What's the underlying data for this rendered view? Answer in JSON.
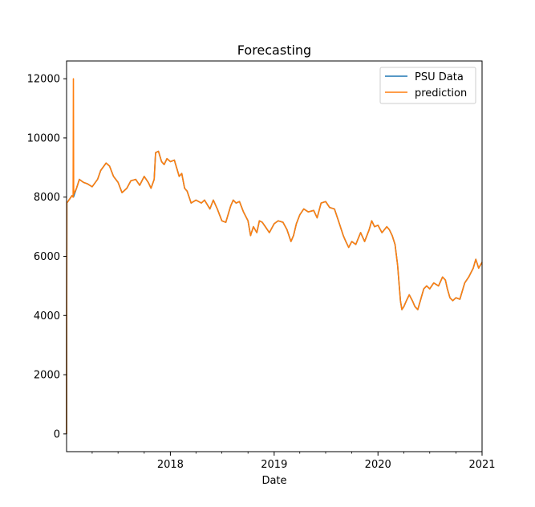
{
  "chart_data": {
    "type": "line",
    "title": "Forecasting",
    "xlabel": "Date",
    "ylabel": "",
    "xlim": [
      "2017-01-01",
      "2021-01-01"
    ],
    "ylim": [
      -600,
      12600
    ],
    "grid": false,
    "legend": "top-right",
    "x_ticks": [
      "2018",
      "2019",
      "2020",
      "2021"
    ],
    "y_ticks": [
      0,
      2000,
      4000,
      6000,
      8000,
      10000,
      12000
    ],
    "series": [
      {
        "name": "PSU Data",
        "color": "#1f77b4",
        "points": [
          [
            "2017-01-01",
            0
          ],
          [
            "2017-01-02",
            7800
          ],
          [
            "2017-01-20",
            8050
          ],
          [
            "2017-01-25",
            8000
          ],
          [
            "2017-02-05",
            8300
          ],
          [
            "2017-02-15",
            8600
          ],
          [
            "2017-03-01",
            8500
          ],
          [
            "2017-03-15",
            8450
          ],
          [
            "2017-04-01",
            8350
          ],
          [
            "2017-04-20",
            8600
          ],
          [
            "2017-05-01",
            8900
          ],
          [
            "2017-05-20",
            9150
          ],
          [
            "2017-06-01",
            9050
          ],
          [
            "2017-06-15",
            8700
          ],
          [
            "2017-07-01",
            8500
          ],
          [
            "2017-07-15",
            8150
          ],
          [
            "2017-08-01",
            8300
          ],
          [
            "2017-08-15",
            8550
          ],
          [
            "2017-09-01",
            8600
          ],
          [
            "2017-09-15",
            8400
          ],
          [
            "2017-10-01",
            8700
          ],
          [
            "2017-10-15",
            8500
          ],
          [
            "2017-10-25",
            8300
          ],
          [
            "2017-11-05",
            8600
          ],
          [
            "2017-11-10",
            9500
          ],
          [
            "2017-11-20",
            9550
          ],
          [
            "2017-12-01",
            9200
          ],
          [
            "2017-12-10",
            9100
          ],
          [
            "2017-12-20",
            9300
          ],
          [
            "2018-01-01",
            9200
          ],
          [
            "2018-01-15",
            9250
          ],
          [
            "2018-02-01",
            8700
          ],
          [
            "2018-02-10",
            8800
          ],
          [
            "2018-02-20",
            8300
          ],
          [
            "2018-03-01",
            8200
          ],
          [
            "2018-03-15",
            7800
          ],
          [
            "2018-04-01",
            7900
          ],
          [
            "2018-04-20",
            7800
          ],
          [
            "2018-05-01",
            7900
          ],
          [
            "2018-05-20",
            7600
          ],
          [
            "2018-06-01",
            7900
          ],
          [
            "2018-06-15",
            7600
          ],
          [
            "2018-07-01",
            7200
          ],
          [
            "2018-07-15",
            7150
          ],
          [
            "2018-08-01",
            7700
          ],
          [
            "2018-08-10",
            7900
          ],
          [
            "2018-08-20",
            7800
          ],
          [
            "2018-09-01",
            7850
          ],
          [
            "2018-09-15",
            7500
          ],
          [
            "2018-10-01",
            7200
          ],
          [
            "2018-10-10",
            6700
          ],
          [
            "2018-10-20",
            7000
          ],
          [
            "2018-11-01",
            6800
          ],
          [
            "2018-11-10",
            7200
          ],
          [
            "2018-11-20",
            7150
          ],
          [
            "2018-12-01",
            7000
          ],
          [
            "2018-12-15",
            6800
          ],
          [
            "2019-01-01",
            7100
          ],
          [
            "2019-01-15",
            7200
          ],
          [
            "2019-02-01",
            7150
          ],
          [
            "2019-02-15",
            6900
          ],
          [
            "2019-03-01",
            6500
          ],
          [
            "2019-03-10",
            6700
          ],
          [
            "2019-03-20",
            7100
          ],
          [
            "2019-04-01",
            7400
          ],
          [
            "2019-04-15",
            7600
          ],
          [
            "2019-05-01",
            7500
          ],
          [
            "2019-05-20",
            7550
          ],
          [
            "2019-06-01",
            7300
          ],
          [
            "2019-06-15",
            7800
          ],
          [
            "2019-07-01",
            7850
          ],
          [
            "2019-07-15",
            7650
          ],
          [
            "2019-08-01",
            7600
          ],
          [
            "2019-08-15",
            7200
          ],
          [
            "2019-09-01",
            6700
          ],
          [
            "2019-09-10",
            6500
          ],
          [
            "2019-09-20",
            6300
          ],
          [
            "2019-10-01",
            6500
          ],
          [
            "2019-10-15",
            6400
          ],
          [
            "2019-11-01",
            6800
          ],
          [
            "2019-11-15",
            6500
          ],
          [
            "2019-12-01",
            6900
          ],
          [
            "2019-12-10",
            7200
          ],
          [
            "2019-12-20",
            7000
          ],
          [
            "2020-01-01",
            7050
          ],
          [
            "2020-01-15",
            6800
          ],
          [
            "2020-02-01",
            7000
          ],
          [
            "2020-02-10",
            6900
          ],
          [
            "2020-02-20",
            6700
          ],
          [
            "2020-03-01",
            6400
          ],
          [
            "2020-03-10",
            5700
          ],
          [
            "2020-03-20",
            4500
          ],
          [
            "2020-03-25",
            4200
          ],
          [
            "2020-04-01",
            4300
          ],
          [
            "2020-04-10",
            4500
          ],
          [
            "2020-04-20",
            4700
          ],
          [
            "2020-05-01",
            4500
          ],
          [
            "2020-05-10",
            4300
          ],
          [
            "2020-05-20",
            4200
          ],
          [
            "2020-06-01",
            4600
          ],
          [
            "2020-06-10",
            4900
          ],
          [
            "2020-06-20",
            5000
          ],
          [
            "2020-07-01",
            4900
          ],
          [
            "2020-07-15",
            5100
          ],
          [
            "2020-08-01",
            5000
          ],
          [
            "2020-08-15",
            5300
          ],
          [
            "2020-08-25",
            5200
          ],
          [
            "2020-09-01",
            4900
          ],
          [
            "2020-09-10",
            4600
          ],
          [
            "2020-09-20",
            4500
          ],
          [
            "2020-10-01",
            4600
          ],
          [
            "2020-10-15",
            4550
          ],
          [
            "2020-11-01",
            5100
          ],
          [
            "2020-11-15",
            5300
          ],
          [
            "2020-12-01",
            5600
          ],
          [
            "2020-12-10",
            5900
          ],
          [
            "2020-12-20",
            5600
          ],
          [
            "2021-01-01",
            5800
          ]
        ]
      },
      {
        "name": "prediction",
        "color": "#ff7f0e",
        "points": [
          [
            "2017-01-01",
            0
          ],
          [
            "2017-01-02",
            7800
          ],
          [
            "2017-01-20",
            8050
          ],
          [
            "2017-01-24",
            8000
          ],
          [
            "2017-01-25",
            12000
          ],
          [
            "2017-01-26",
            8100
          ],
          [
            "2017-02-05",
            8300
          ],
          [
            "2017-02-15",
            8600
          ],
          [
            "2017-03-01",
            8500
          ],
          [
            "2017-03-15",
            8450
          ],
          [
            "2017-04-01",
            8350
          ],
          [
            "2017-04-20",
            8600
          ],
          [
            "2017-05-01",
            8900
          ],
          [
            "2017-05-20",
            9150
          ],
          [
            "2017-06-01",
            9050
          ],
          [
            "2017-06-15",
            8700
          ],
          [
            "2017-07-01",
            8500
          ],
          [
            "2017-07-15",
            8150
          ],
          [
            "2017-08-01",
            8300
          ],
          [
            "2017-08-15",
            8550
          ],
          [
            "2017-09-01",
            8600
          ],
          [
            "2017-09-15",
            8400
          ],
          [
            "2017-10-01",
            8700
          ],
          [
            "2017-10-15",
            8500
          ],
          [
            "2017-10-25",
            8300
          ],
          [
            "2017-11-05",
            8600
          ],
          [
            "2017-11-10",
            9500
          ],
          [
            "2017-11-20",
            9550
          ],
          [
            "2017-12-01",
            9200
          ],
          [
            "2017-12-10",
            9100
          ],
          [
            "2017-12-20",
            9300
          ],
          [
            "2018-01-01",
            9200
          ],
          [
            "2018-01-15",
            9250
          ],
          [
            "2018-02-01",
            8700
          ],
          [
            "2018-02-10",
            8800
          ],
          [
            "2018-02-20",
            8300
          ],
          [
            "2018-03-01",
            8200
          ],
          [
            "2018-03-15",
            7800
          ],
          [
            "2018-04-01",
            7900
          ],
          [
            "2018-04-20",
            7800
          ],
          [
            "2018-05-01",
            7900
          ],
          [
            "2018-05-20",
            7600
          ],
          [
            "2018-06-01",
            7900
          ],
          [
            "2018-06-15",
            7600
          ],
          [
            "2018-07-01",
            7200
          ],
          [
            "2018-07-15",
            7150
          ],
          [
            "2018-08-01",
            7700
          ],
          [
            "2018-08-10",
            7900
          ],
          [
            "2018-08-20",
            7800
          ],
          [
            "2018-09-01",
            7850
          ],
          [
            "2018-09-15",
            7500
          ],
          [
            "2018-10-01",
            7200
          ],
          [
            "2018-10-10",
            6700
          ],
          [
            "2018-10-20",
            7000
          ],
          [
            "2018-11-01",
            6800
          ],
          [
            "2018-11-10",
            7200
          ],
          [
            "2018-11-20",
            7150
          ],
          [
            "2018-12-01",
            7000
          ],
          [
            "2018-12-15",
            6800
          ],
          [
            "2019-01-01",
            7100
          ],
          [
            "2019-01-15",
            7200
          ],
          [
            "2019-02-01",
            7150
          ],
          [
            "2019-02-15",
            6900
          ],
          [
            "2019-03-01",
            6500
          ],
          [
            "2019-03-10",
            6700
          ],
          [
            "2019-03-20",
            7100
          ],
          [
            "2019-04-01",
            7400
          ],
          [
            "2019-04-15",
            7600
          ],
          [
            "2019-05-01",
            7500
          ],
          [
            "2019-05-20",
            7550
          ],
          [
            "2019-06-01",
            7300
          ],
          [
            "2019-06-15",
            7800
          ],
          [
            "2019-07-01",
            7850
          ],
          [
            "2019-07-15",
            7650
          ],
          [
            "2019-08-01",
            7600
          ],
          [
            "2019-08-15",
            7200
          ],
          [
            "2019-09-01",
            6700
          ],
          [
            "2019-09-10",
            6500
          ],
          [
            "2019-09-20",
            6300
          ],
          [
            "2019-10-01",
            6500
          ],
          [
            "2019-10-15",
            6400
          ],
          [
            "2019-11-01",
            6800
          ],
          [
            "2019-11-15",
            6500
          ],
          [
            "2019-12-01",
            6900
          ],
          [
            "2019-12-10",
            7200
          ],
          [
            "2019-12-20",
            7000
          ],
          [
            "2020-01-01",
            7050
          ],
          [
            "2020-01-15",
            6800
          ],
          [
            "2020-02-01",
            7000
          ],
          [
            "2020-02-10",
            6900
          ],
          [
            "2020-02-20",
            6700
          ],
          [
            "2020-03-01",
            6400
          ],
          [
            "2020-03-10",
            5700
          ],
          [
            "2020-03-20",
            4500
          ],
          [
            "2020-03-25",
            4200
          ],
          [
            "2020-04-01",
            4300
          ],
          [
            "2020-04-10",
            4500
          ],
          [
            "2020-04-20",
            4700
          ],
          [
            "2020-05-01",
            4500
          ],
          [
            "2020-05-10",
            4300
          ],
          [
            "2020-05-20",
            4200
          ],
          [
            "2020-06-01",
            4600
          ],
          [
            "2020-06-10",
            4900
          ],
          [
            "2020-06-20",
            5000
          ],
          [
            "2020-07-01",
            4900
          ],
          [
            "2020-07-15",
            5100
          ],
          [
            "2020-08-01",
            5000
          ],
          [
            "2020-08-15",
            5300
          ],
          [
            "2020-08-25",
            5200
          ],
          [
            "2020-09-01",
            4900
          ],
          [
            "2020-09-10",
            4600
          ],
          [
            "2020-09-20",
            4500
          ],
          [
            "2020-10-01",
            4600
          ],
          [
            "2020-10-15",
            4550
          ],
          [
            "2020-11-01",
            5100
          ],
          [
            "2020-11-15",
            5300
          ],
          [
            "2020-12-01",
            5600
          ],
          [
            "2020-12-10",
            5900
          ],
          [
            "2020-12-20",
            5600
          ],
          [
            "2021-01-01",
            5800
          ]
        ]
      }
    ]
  }
}
